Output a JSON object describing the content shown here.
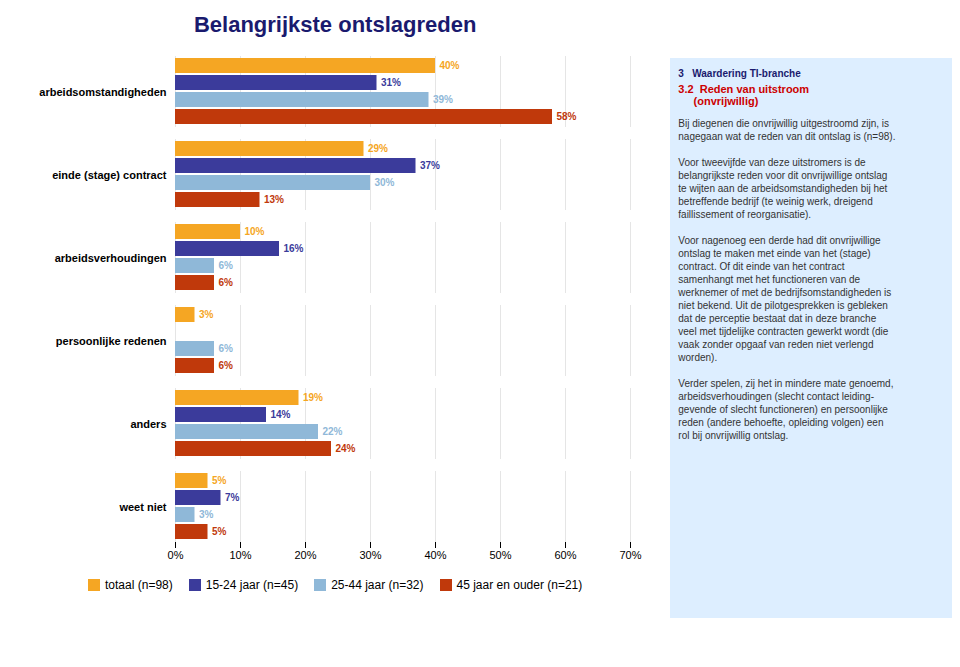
{
  "chart_data": {
    "type": "bar",
    "orientation": "horizontal",
    "title": "Belangrijkste ontslagreden",
    "categories": [
      "arbeidsomstandigheden",
      "einde (stage) contract",
      "arbeidsverhoudingen",
      "persoonlijke redenen",
      "anders",
      "weet niet"
    ],
    "series": [
      {
        "name": "totaal (n=98)",
        "color": "#F5A623",
        "values": [
          40,
          29,
          10,
          3,
          19,
          5
        ],
        "value_labels": [
          "40%",
          "29%",
          "10%",
          "3%",
          "19%",
          "5%"
        ]
      },
      {
        "name": "15-24 jaar (n=45)",
        "color": "#3B3B9B",
        "values": [
          31,
          37,
          16,
          0,
          14,
          7
        ],
        "value_labels": [
          "31%",
          "37%",
          "16%",
          null,
          "14%",
          "7%"
        ]
      },
      {
        "name": "25-44 jaar (n=32)",
        "color": "#8FB8D8",
        "values": [
          39,
          30,
          6,
          6,
          22,
          3
        ],
        "value_labels": [
          "39%",
          "30%",
          "6%",
          "6%",
          "22%",
          "3%"
        ]
      },
      {
        "name": "45 jaar en ouder (n=21)",
        "color": "#C0390B",
        "values": [
          58,
          13,
          6,
          6,
          24,
          5
        ],
        "value_labels": [
          "58%",
          "13%",
          "6%",
          "6%",
          "24%",
          "5%"
        ]
      }
    ],
    "xlim": [
      0,
      70
    ],
    "xticks": [
      {
        "value": 0,
        "label": "0%"
      },
      {
        "value": 10,
        "label": "10%"
      },
      {
        "value": 20,
        "label": "20%"
      },
      {
        "value": 30,
        "label": "30%"
      },
      {
        "value": 40,
        "label": "40%"
      },
      {
        "value": 50,
        "label": "50%"
      },
      {
        "value": 60,
        "label": "60%"
      },
      {
        "value": 70,
        "label": "70%"
      }
    ],
    "grid": true,
    "legend": "bottom",
    "data_labels": true,
    "annotations": [
      "3   Waardering TI-branche",
      "3.2  Reden van uitstroom\n     (onvrijwillig)",
      "Bij diegenen die onvrijwillig uitgestroomd zijn, is\nnagegaan wat de reden van dit ontslag is (n=98).\n\nVoor tweevijfde van deze uitstromers is de\nbelangrijkste reden voor dit onvrijwillige ontslag\nte wijten aan de arbeidsomstandigheden bij het\nbetreffende bedrijf (te weinig werk, dreigend\nfaillissement of reorganisatie).\n\nVoor nagenoeg een derde had dit onvrijwillige\nontslag te maken met einde van het (stage)\ncontract. Of dit einde van het contract\nsamenhangt met het functioneren van de\nwerknemer of met de bedrijfsomstandigheden is\nniet bekend. Uit de pilotgesprekken is gebleken\ndat de perceptie bestaat dat in deze branche\nveel met tijdelijke contracten gewerkt wordt (die\nvaak zonder opgaaf van reden niet verlengd\nworden).\n\nVerder spelen, zij het in mindere mate genoemd,\narbeidsverhoudingen (slecht contact leiding-\ngevende of slecht functioneren) en persoonlijke\nreden (andere behoefte, opleiding volgen) een\nrol bij onvrijwillig ontslag."
    ]
  }
}
